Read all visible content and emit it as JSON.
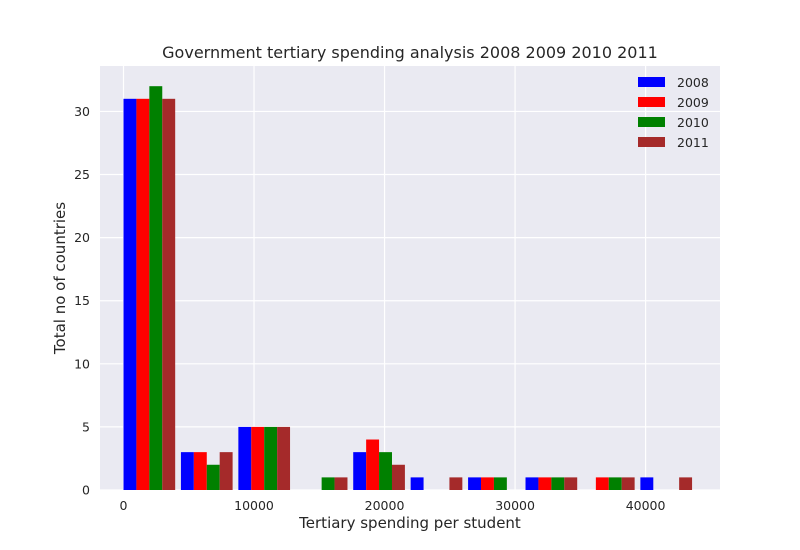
{
  "chart_data": {
    "type": "bar",
    "title": "Government tertiary spending analysis 2008 2009 2010 2011",
    "xlabel": "Tertiary spending per student",
    "ylabel": "Total no of countries",
    "xlim": [
      -1800,
      45700
    ],
    "ylim": [
      0,
      33.6
    ],
    "x_ticks": [
      0,
      10000,
      20000,
      30000,
      40000
    ],
    "y_ticks": [
      0,
      5,
      10,
      15,
      20,
      25,
      30
    ],
    "grid": true,
    "legend_position": "top-right",
    "bin_edges": [
      0,
      4400,
      8800,
      13200,
      17600,
      22000,
      26400,
      30800,
      35200,
      39600,
      44000
    ],
    "series": [
      {
        "name": "2008",
        "color": "#0000ff",
        "values": [
          31,
          3,
          5,
          0,
          3,
          1,
          1,
          1,
          0,
          1
        ]
      },
      {
        "name": "2009",
        "color": "#ff0000",
        "values": [
          31,
          3,
          5,
          0,
          4,
          0,
          1,
          1,
          1,
          0
        ]
      },
      {
        "name": "2010",
        "color": "#008000",
        "values": [
          32,
          2,
          5,
          1,
          3,
          0,
          1,
          1,
          1,
          0
        ]
      },
      {
        "name": "2011",
        "color": "#a52a2a",
        "values": [
          31,
          3,
          5,
          1,
          2,
          1,
          0,
          1,
          1,
          1
        ]
      }
    ]
  }
}
